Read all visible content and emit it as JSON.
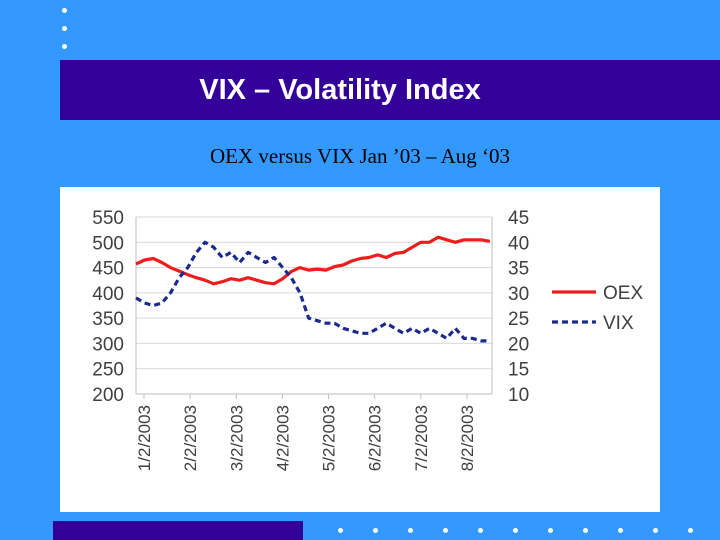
{
  "slide": {
    "title": "VIX – Volatility Index",
    "subtitle": "OEX versus VIX   Jan ’03 – Aug ‘03"
  },
  "colors": {
    "background": "#3399ff",
    "title_band": "#330099",
    "oex": "#ee1c1c",
    "vix": "#1b2a8c"
  },
  "chart_data": {
    "type": "line",
    "title": "OEX versus VIX   Jan ’03 – Aug ‘03",
    "x_tick_labels": [
      "1/2/2003",
      "2/2/2003",
      "3/2/2003",
      "4/2/2003",
      "5/2/2003",
      "6/2/2003",
      "7/2/2003",
      "8/2/2003"
    ],
    "xlim": [
      0,
      165
    ],
    "left_axis": {
      "ylim": [
        200,
        550
      ],
      "ticks": [
        "200",
        "250",
        "300",
        "350",
        "400",
        "450",
        "500",
        "550"
      ]
    },
    "right_axis": {
      "ylim": [
        10,
        45
      ],
      "ticks": [
        "10",
        "15",
        "20",
        "25",
        "30",
        "35",
        "40",
        "45"
      ]
    },
    "grid": true,
    "legend": "right",
    "series": [
      {
        "name": "OEX",
        "axis": "left",
        "style": "solid",
        "points": [
          [
            0,
            457
          ],
          [
            4,
            465
          ],
          [
            8,
            468
          ],
          [
            12,
            460
          ],
          [
            16,
            450
          ],
          [
            20,
            443
          ],
          [
            24,
            436
          ],
          [
            28,
            430
          ],
          [
            32,
            425
          ],
          [
            36,
            418
          ],
          [
            40,
            422
          ],
          [
            44,
            428
          ],
          [
            48,
            425
          ],
          [
            52,
            430
          ],
          [
            56,
            425
          ],
          [
            60,
            420
          ],
          [
            64,
            418
          ],
          [
            68,
            428
          ],
          [
            72,
            442
          ],
          [
            76,
            450
          ],
          [
            80,
            445
          ],
          [
            84,
            447
          ],
          [
            88,
            445
          ],
          [
            92,
            452
          ],
          [
            96,
            455
          ],
          [
            100,
            463
          ],
          [
            104,
            468
          ],
          [
            108,
            470
          ],
          [
            112,
            475
          ],
          [
            116,
            470
          ],
          [
            120,
            478
          ],
          [
            124,
            480
          ],
          [
            128,
            490
          ],
          [
            132,
            500
          ],
          [
            136,
            500
          ],
          [
            140,
            510
          ],
          [
            144,
            505
          ],
          [
            148,
            500
          ],
          [
            152,
            505
          ],
          [
            156,
            505
          ],
          [
            160,
            505
          ],
          [
            164,
            502
          ]
        ]
      },
      {
        "name": "VIX",
        "axis": "right",
        "style": "dashed",
        "points": [
          [
            0,
            29
          ],
          [
            4,
            28
          ],
          [
            8,
            27.5
          ],
          [
            12,
            28
          ],
          [
            16,
            30
          ],
          [
            20,
            33
          ],
          [
            24,
            35
          ],
          [
            28,
            38
          ],
          [
            32,
            40
          ],
          [
            36,
            39
          ],
          [
            40,
            37
          ],
          [
            44,
            38
          ],
          [
            48,
            36
          ],
          [
            52,
            38
          ],
          [
            56,
            37
          ],
          [
            60,
            36
          ],
          [
            64,
            37
          ],
          [
            68,
            35
          ],
          [
            72,
            33
          ],
          [
            76,
            30
          ],
          [
            80,
            25
          ],
          [
            84,
            24.5
          ],
          [
            88,
            24
          ],
          [
            92,
            24
          ],
          [
            96,
            23
          ],
          [
            100,
            22.5
          ],
          [
            104,
            22
          ],
          [
            108,
            22
          ],
          [
            112,
            23
          ],
          [
            116,
            24
          ],
          [
            120,
            23
          ],
          [
            124,
            22
          ],
          [
            128,
            23
          ],
          [
            132,
            22
          ],
          [
            136,
            23
          ],
          [
            140,
            22
          ],
          [
            144,
            21
          ],
          [
            148,
            23
          ],
          [
            152,
            21
          ],
          [
            156,
            21
          ],
          [
            160,
            20.5
          ],
          [
            164,
            20.5
          ]
        ]
      }
    ]
  }
}
